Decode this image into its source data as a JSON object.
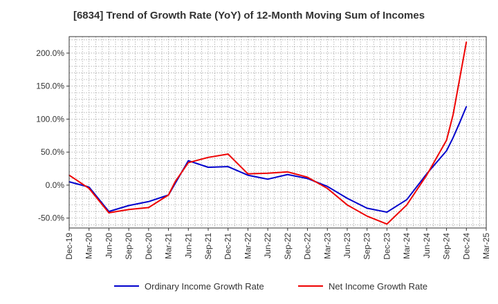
{
  "chart_data": {
    "type": "line",
    "title": "[6834]  Trend of Growth Rate (YoY) of 12-Month Moving Sum of Incomes",
    "xlabel": "",
    "ylabel": "",
    "ylim": [
      -65,
      225
    ],
    "y_ticks": [
      -50,
      0,
      50,
      100,
      150,
      200
    ],
    "y_tick_labels": [
      "-50.0%",
      "0.0%",
      "50.0%",
      "100.0%",
      "150.0%",
      "200.0%"
    ],
    "x_tick_labels": [
      "Dec-19",
      "Mar-20",
      "Jun-20",
      "Sep-20",
      "Dec-20",
      "Mar-21",
      "Jun-21",
      "Sep-21",
      "Dec-21",
      "Mar-22",
      "Jun-22",
      "Sep-22",
      "Dec-22",
      "Mar-23",
      "Jun-23",
      "Sep-23",
      "Dec-23",
      "Mar-24",
      "Jun-24",
      "Sep-24",
      "Dec-24",
      "Mar-25"
    ],
    "x": [
      "Dec-19",
      "Jan-20",
      "Feb-20",
      "Mar-20",
      "Apr-20",
      "May-20",
      "Jun-20",
      "Jul-20",
      "Aug-20",
      "Sep-20",
      "Oct-20",
      "Nov-20",
      "Dec-20",
      "Jan-21",
      "Feb-21",
      "Mar-21",
      "Apr-21",
      "May-21",
      "Jun-21",
      "Jul-21",
      "Aug-21",
      "Sep-21",
      "Oct-21",
      "Nov-21",
      "Dec-21",
      "Jan-22",
      "Feb-22",
      "Mar-22",
      "Apr-22",
      "May-22",
      "Jun-22",
      "Jul-22",
      "Aug-22",
      "Sep-22",
      "Oct-22",
      "Nov-22",
      "Dec-22",
      "Jan-23",
      "Feb-23",
      "Mar-23",
      "Apr-23",
      "May-23",
      "Jun-23",
      "Jul-23",
      "Aug-23",
      "Sep-23",
      "Oct-23",
      "Nov-23",
      "Dec-23",
      "Jan-24",
      "Feb-24",
      "Mar-24",
      "Apr-24",
      "May-24",
      "Jun-24",
      "Jul-24",
      "Aug-24",
      "Sep-24",
      "Oct-24",
      "Nov-24",
      "Dec-24",
      "Jan-25",
      "Feb-25",
      "Mar-25"
    ],
    "grid": true,
    "legend_position": "bottom-center",
    "series": [
      {
        "name": "Ordinary Income Growth Rate",
        "color": "#0000cc",
        "points": [
          [
            "Dec-19",
            5
          ],
          [
            "Mar-20",
            -3
          ],
          [
            "Jun-20",
            -40
          ],
          [
            "Sep-20",
            -31
          ],
          [
            "Dec-20",
            -25
          ],
          [
            "Mar-21",
            -15
          ],
          [
            "Jun-21",
            37
          ],
          [
            "Sep-21",
            27
          ],
          [
            "Dec-21",
            28
          ],
          [
            "Mar-22",
            15
          ],
          [
            "Jun-22",
            9
          ],
          [
            "Sep-22",
            16
          ],
          [
            "Dec-22",
            10
          ],
          [
            "Mar-23",
            -2
          ],
          [
            "Jun-23",
            -20
          ],
          [
            "Sep-23",
            -35
          ],
          [
            "Dec-23",
            -41
          ],
          [
            "Mar-24",
            -22
          ],
          [
            "Jun-24",
            17
          ],
          [
            "Sep-24",
            52
          ],
          [
            "Oct-24",
            72
          ],
          [
            "Nov-24",
            95
          ],
          [
            "Dec-24",
            119
          ]
        ]
      },
      {
        "name": "Net Income Growth Rate",
        "color": "#ee0000",
        "points": [
          [
            "Dec-19",
            15
          ],
          [
            "Mar-20",
            -5
          ],
          [
            "Jun-20",
            -42
          ],
          [
            "Sep-20",
            -37
          ],
          [
            "Dec-20",
            -34
          ],
          [
            "Mar-21",
            -15
          ],
          [
            "Apr-21",
            5
          ],
          [
            "Jun-21",
            34
          ],
          [
            "Sep-21",
            42
          ],
          [
            "Dec-21",
            47
          ],
          [
            "Mar-22",
            17
          ],
          [
            "Jun-22",
            18
          ],
          [
            "Sep-22",
            20
          ],
          [
            "Dec-22",
            12
          ],
          [
            "Mar-23",
            -5
          ],
          [
            "Jun-23",
            -30
          ],
          [
            "Sep-23",
            -47
          ],
          [
            "Dec-23",
            -59
          ],
          [
            "Mar-24",
            -30
          ],
          [
            "Jun-24",
            15
          ],
          [
            "Sep-24",
            68
          ],
          [
            "Oct-24",
            107
          ],
          [
            "Nov-24",
            162
          ],
          [
            "Dec-24",
            217
          ]
        ]
      }
    ]
  }
}
